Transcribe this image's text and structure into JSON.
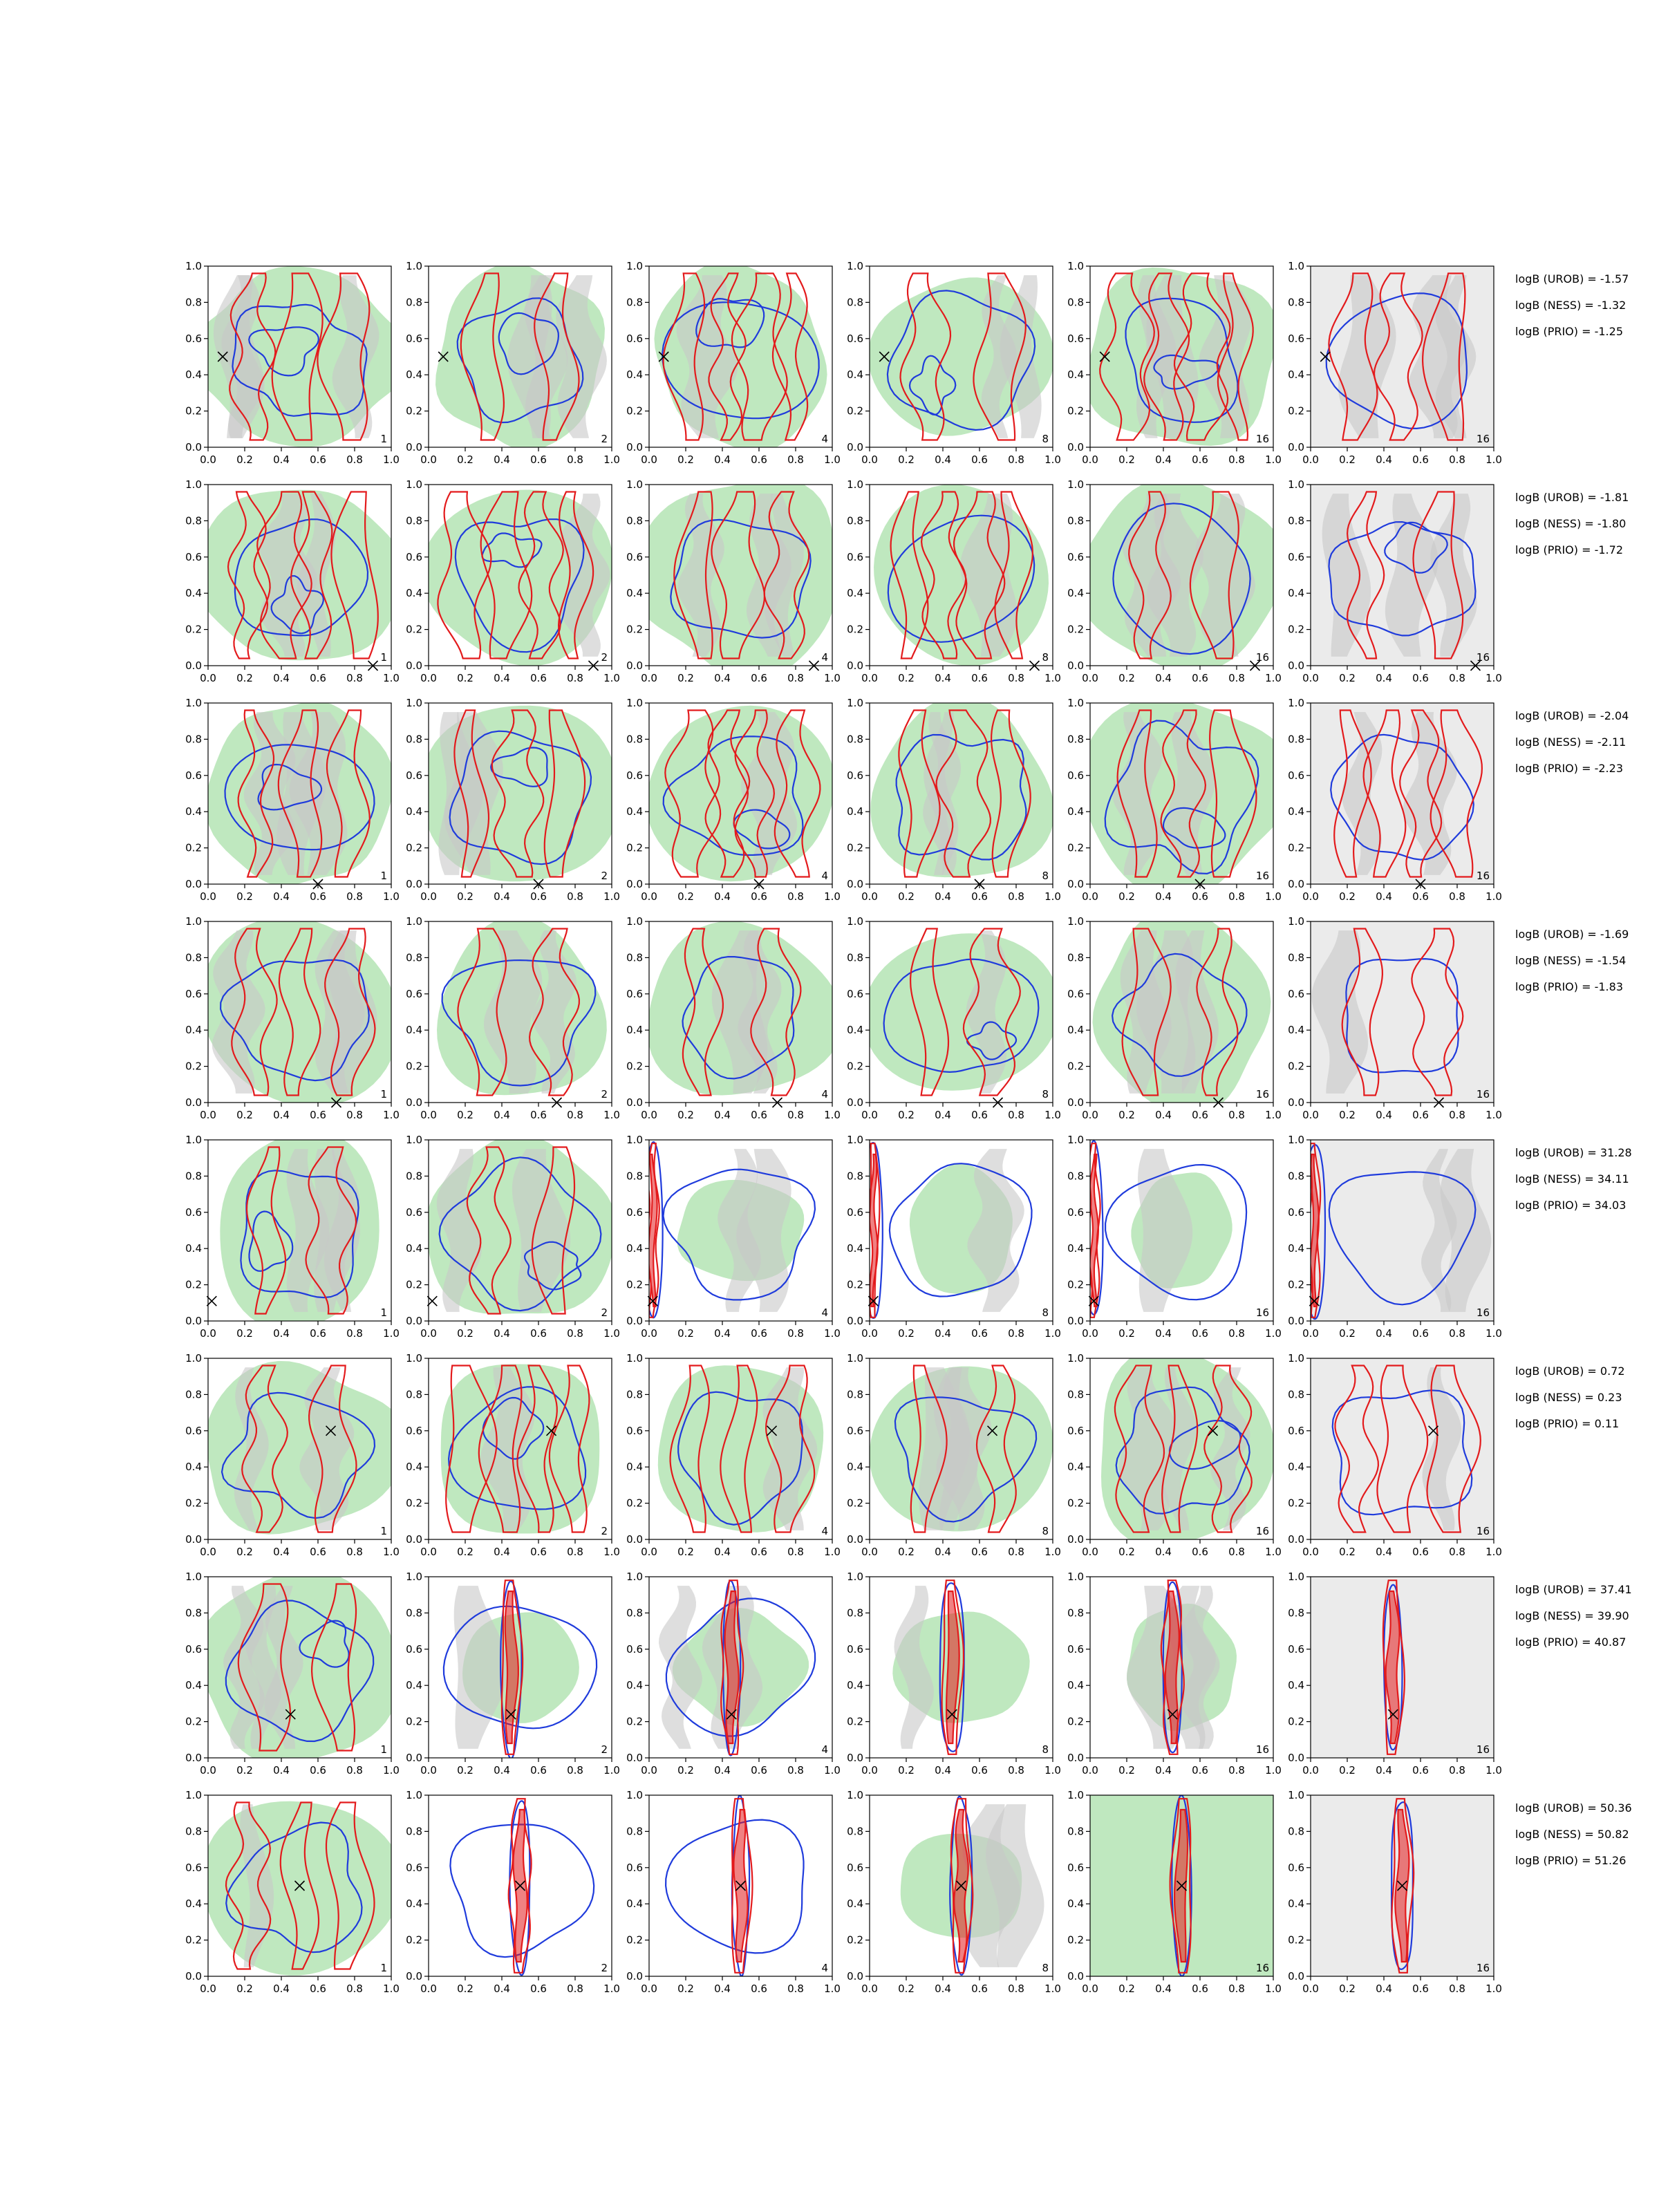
{
  "chart_data": {
    "type": "contour_grid",
    "rows": 8,
    "cols": 6,
    "panel_labels": [
      "1",
      "2",
      "4",
      "8",
      "16",
      "16"
    ],
    "xlim": [
      0,
      1
    ],
    "ylim": [
      0,
      1
    ],
    "tick_labels": [
      "0.0",
      "0.2",
      "0.4",
      "0.6",
      "0.8",
      "1.0"
    ],
    "colors": {
      "red_contour": "#e31a1c",
      "blue_contour": "#1f3bdc",
      "green_fill": "#bfe8bf",
      "gray_fill": "#c8c8c8",
      "light_gray_bg": "#ebebeb"
    },
    "rows_data": [
      {
        "marker": [
          0.08,
          0.5
        ],
        "logB": [
          "logB (UROB) = -1.57",
          "logB (NESS) = -1.32",
          "logB (PRIO) = -1.25"
        ]
      },
      {
        "marker": [
          0.9,
          0.0
        ],
        "logB": [
          "logB (UROB) = -1.81",
          "logB (NESS) = -1.80",
          "logB (PRIO) = -1.72"
        ]
      },
      {
        "marker": [
          0.6,
          0.0
        ],
        "logB": [
          "logB (UROB) = -2.04",
          "logB (NESS) = -2.11",
          "logB (PRIO) = -2.23"
        ]
      },
      {
        "marker": [
          0.7,
          0.0
        ],
        "logB": [
          "logB (UROB) = -1.69",
          "logB (NESS) = -1.54",
          "logB (PRIO) = -1.83"
        ]
      },
      {
        "marker": [
          0.02,
          0.11
        ],
        "logB": [
          "logB (UROB) = 31.28",
          "logB (NESS) = 34.11",
          "logB (PRIO) = 34.03"
        ]
      },
      {
        "marker": [
          0.67,
          0.6
        ],
        "logB": [
          "logB (UROB) = 0.72",
          "logB (NESS) = 0.23",
          "logB (PRIO) = 0.11"
        ]
      },
      {
        "marker": [
          0.45,
          0.24
        ],
        "logB": [
          "logB (UROB) = 37.41",
          "logB (NESS) = 39.90",
          "logB (PRIO) = 40.87"
        ]
      },
      {
        "marker": [
          0.5,
          0.5
        ],
        "logB": [
          "logB (UROB) = 50.36",
          "logB (NESS) = 50.82",
          "logB (PRIO) = 51.26"
        ]
      }
    ]
  }
}
